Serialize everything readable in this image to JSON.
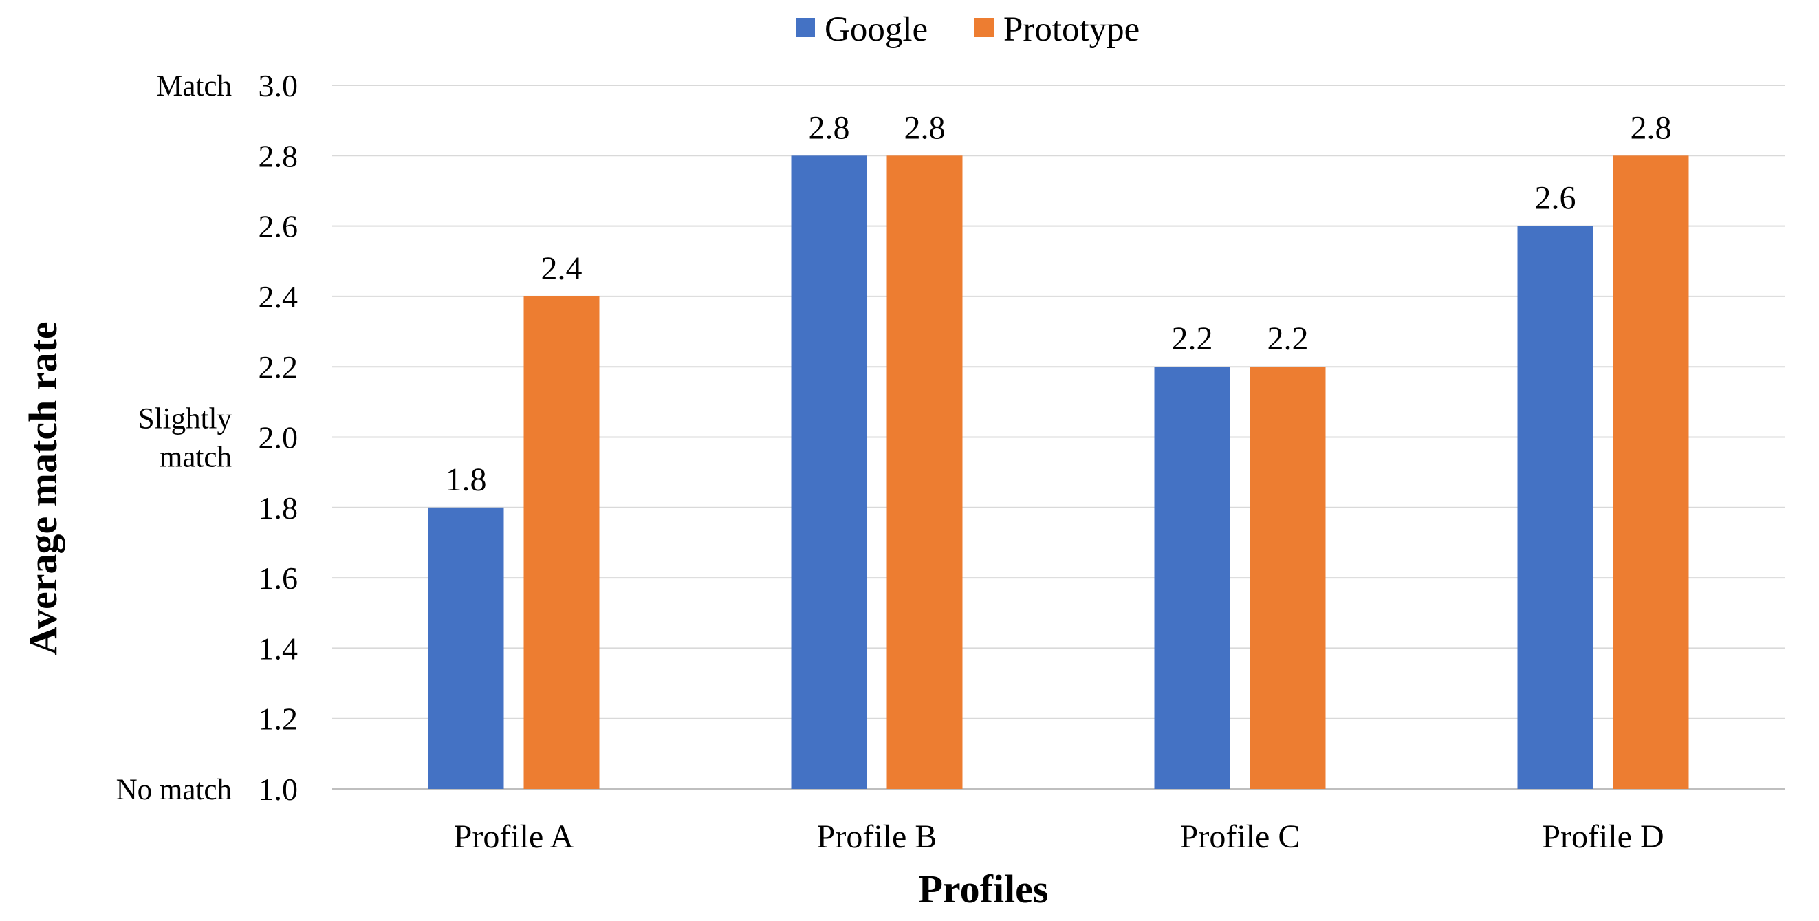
{
  "chart_data": {
    "type": "bar",
    "xlabel": "Profiles",
    "ylabel": "Average match rate",
    "ylim": [
      1.0,
      3.0
    ],
    "yticks": [
      1.0,
      1.2,
      1.4,
      1.6,
      1.8,
      2.0,
      2.2,
      2.4,
      2.6,
      2.8,
      3.0
    ],
    "ytick_labels": [
      "1.0",
      "1.2",
      "1.4",
      "1.6",
      "1.8",
      "2.0",
      "2.2",
      "2.4",
      "2.6",
      "2.8",
      "3.0"
    ],
    "grid": true,
    "legend_position": "top-center",
    "categories": [
      "Profile A",
      "Profile B",
      "Profile C",
      "Profile D"
    ],
    "series": [
      {
        "name": "Google",
        "color": "#4472C4",
        "values": [
          1.8,
          2.8,
          2.2,
          2.6
        ],
        "labels": [
          "1.8",
          "2.8",
          "2.2",
          "2.6"
        ]
      },
      {
        "name": "Prototype",
        "color": "#ED7D31",
        "values": [
          2.4,
          2.8,
          2.2,
          2.8
        ],
        "labels": [
          "2.4",
          "2.8",
          "2.2",
          "2.8"
        ]
      }
    ],
    "qualitative_labels": [
      {
        "value": 3.0,
        "lines": [
          "Match"
        ]
      },
      {
        "value": 2.0,
        "lines": [
          "Slightly",
          "match"
        ]
      },
      {
        "value": 1.0,
        "lines": [
          "No match"
        ]
      }
    ]
  }
}
